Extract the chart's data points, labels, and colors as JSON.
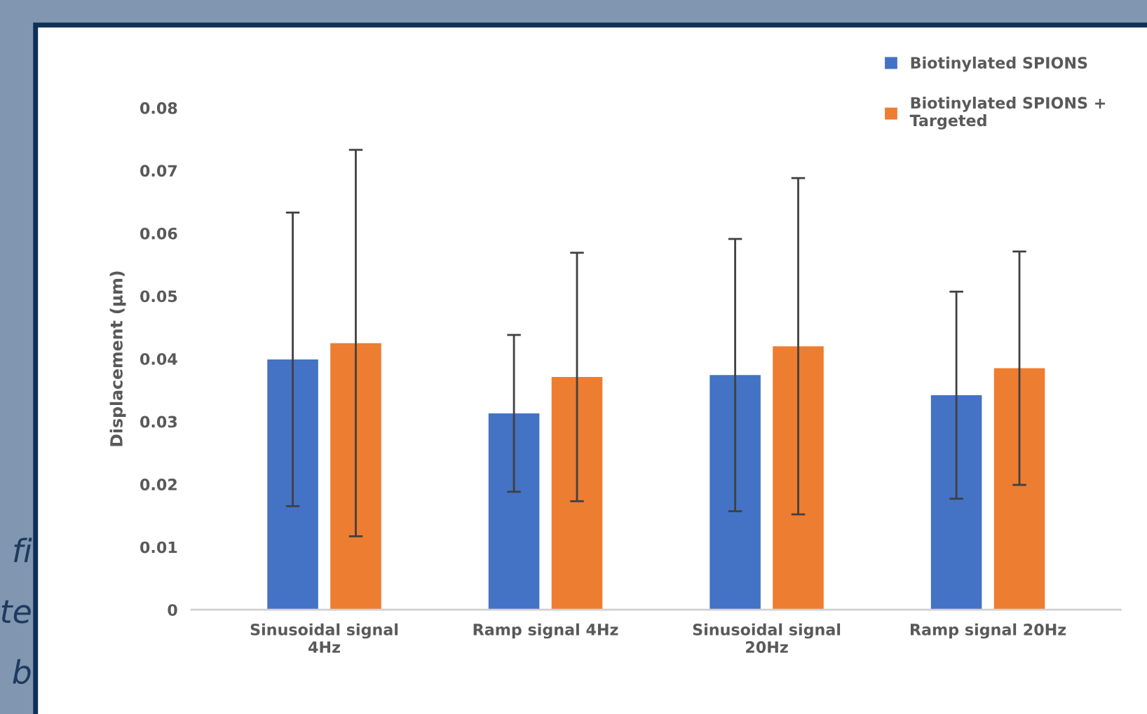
{
  "chart_data": {
    "type": "bar",
    "ylabel": "Displacement (µm)",
    "categories": [
      "Sinusoidal signal\n4Hz",
      "Ramp signal 4Hz",
      "Sinusoidal signal\n20Hz",
      "Ramp signal 20Hz"
    ],
    "series": [
      {
        "name": "Biotinylated SPIONS",
        "color": "#4472c4",
        "values": [
          0.0399,
          0.0313,
          0.0374,
          0.0342
        ],
        "errors": [
          0.0234,
          0.0125,
          0.0217,
          0.0165
        ]
      },
      {
        "name": "Biotinylated SPIONS +\nTargeted",
        "color": "#ed7d31",
        "values": [
          0.0425,
          0.0371,
          0.042,
          0.0385
        ],
        "errors": [
          0.0308,
          0.0198,
          0.0268,
          0.0186
        ]
      }
    ],
    "ylim": [
      0,
      0.08
    ],
    "yticks": [
      0,
      0.01,
      0.02,
      0.03,
      0.04,
      0.05,
      0.06,
      0.07,
      0.08
    ],
    "grid": false,
    "legend": "top right",
    "annotations": [
      "fi",
      "te",
      "b"
    ]
  }
}
